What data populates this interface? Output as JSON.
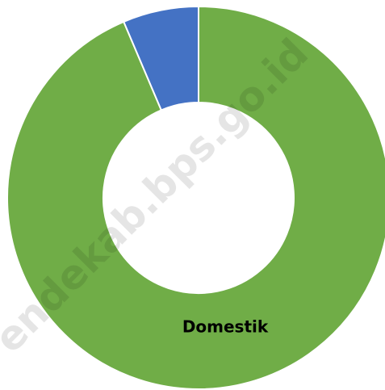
{
  "chart_data": {
    "type": "donut",
    "categories": [
      "Domestik",
      null
    ],
    "values": [
      93.6,
      6.4
    ],
    "colors": [
      "#70ad47",
      "#4472c4"
    ],
    "watermark": "endekab.bps.go.id"
  }
}
